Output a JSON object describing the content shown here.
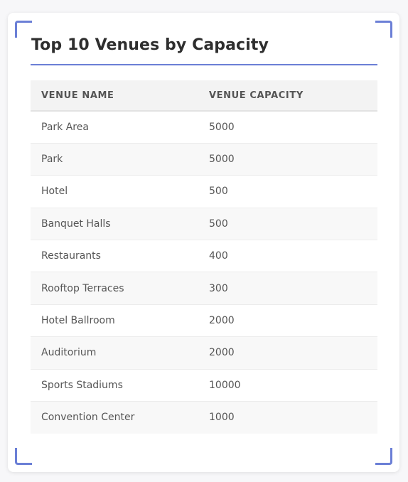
{
  "card": {
    "title": "Top 10 Venues by Capacity"
  },
  "table": {
    "headers": [
      "VENUE NAME",
      "VENUE CAPACITY"
    ],
    "rows": [
      {
        "venue": "Park Area",
        "capacity": "5000"
      },
      {
        "venue": "Park",
        "capacity": "5000"
      },
      {
        "venue": "Hotel",
        "capacity": "500"
      },
      {
        "venue": "Banquet Halls",
        "capacity": "500"
      },
      {
        "venue": "Restaurants",
        "capacity": "400"
      },
      {
        "venue": "Rooftop Terraces",
        "capacity": "300"
      },
      {
        "venue": "Hotel Ballroom",
        "capacity": "2000"
      },
      {
        "venue": "Auditorium",
        "capacity": "2000"
      },
      {
        "venue": "Sports Stadiums",
        "capacity": "10000"
      },
      {
        "venue": "Convention Center",
        "capacity": "1000"
      }
    ]
  },
  "colors": {
    "accent": "#6b7fd6",
    "header_bg": "#f3f3f3",
    "stripe_bg": "#f8f8f8",
    "text": "#555555"
  }
}
